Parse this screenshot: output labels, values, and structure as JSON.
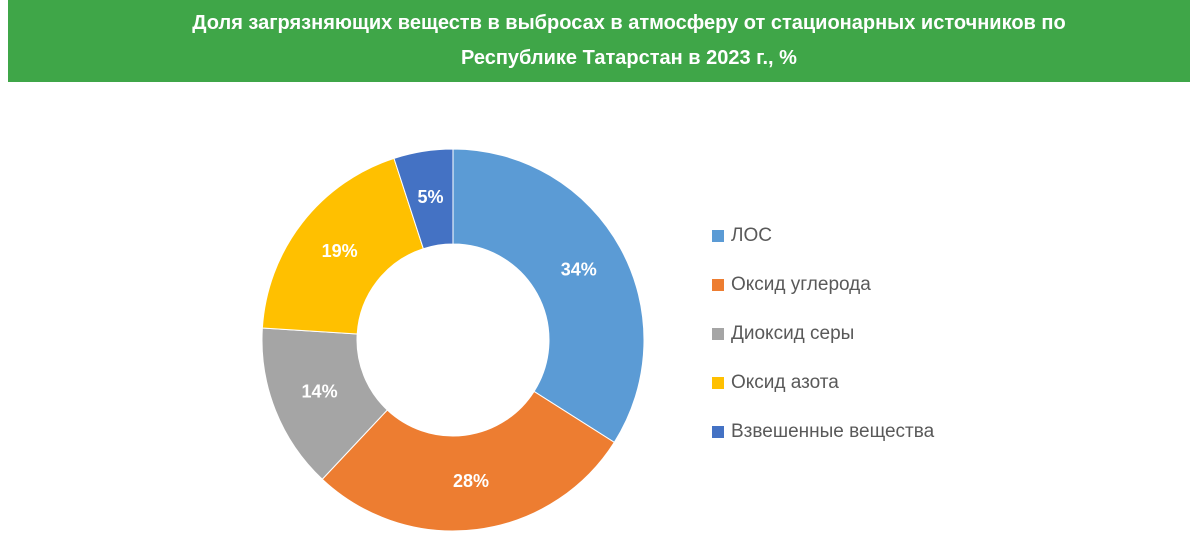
{
  "chart_data": {
    "type": "donut",
    "title": "Доля загрязняющих веществ в выбросах в атмосферу от стационарных источников по Республике Татарстан в 2023 г., %",
    "categories": [
      "ЛОС",
      "Оксид углерода",
      "Диоксид серы",
      "Оксид азота",
      "Взвешенные вещества"
    ],
    "values": [
      34,
      28,
      14,
      19,
      5
    ],
    "value_labels": [
      "34%",
      "28%",
      "14%",
      "19%",
      "5%"
    ],
    "colors": [
      "#5b9bd5",
      "#ed7d31",
      "#a5a5a5",
      "#ffc000",
      "#4472c4"
    ],
    "legend": "right"
  }
}
